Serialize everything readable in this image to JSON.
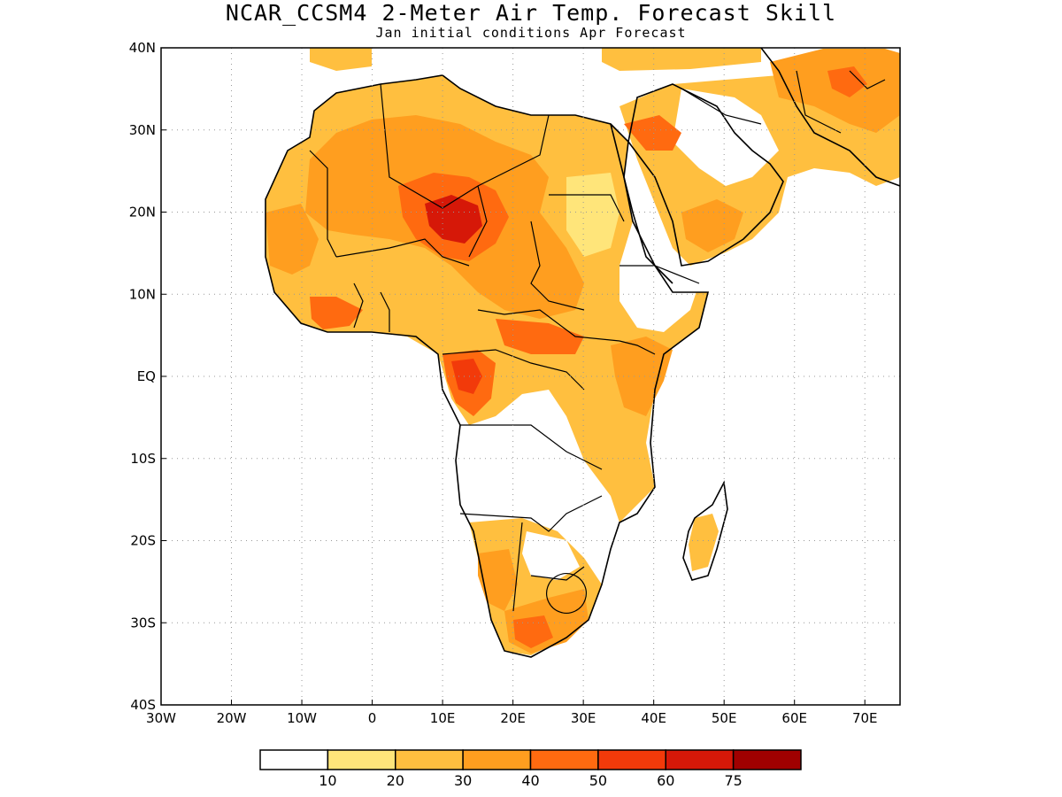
{
  "title": "NCAR_CCSM4 2-Meter Air Temp. Forecast Skill",
  "subtitle": "Jan initial conditions  Apr Forecast",
  "map": {
    "lon_range": [
      -30,
      75
    ],
    "lat_range": [
      -40,
      40
    ],
    "x_ticks": [
      "30W",
      "20W",
      "10W",
      "0",
      "10E",
      "20E",
      "30E",
      "40E",
      "50E",
      "60E",
      "70E"
    ],
    "y_ticks": [
      "40N",
      "30N",
      "20N",
      "10N",
      "EQ",
      "10S",
      "20S",
      "30S",
      "40S"
    ],
    "grid": "dotted",
    "land_outline": "black coastlines and country borders",
    "region": "Africa and Arabian Peninsula"
  },
  "colorbar": {
    "colors": [
      "#ffffff",
      "#ffe57a",
      "#ffbf3f",
      "#ff9e1f",
      "#ff6a10",
      "#f23a0a",
      "#d61808",
      "#a00000"
    ],
    "labels": [
      "10",
      "20",
      "30",
      "40",
      "50",
      "60",
      "75"
    ]
  }
}
